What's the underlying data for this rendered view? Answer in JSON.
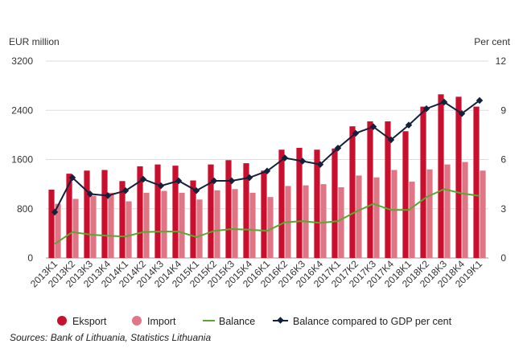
{
  "chart_data": {
    "type": "bar",
    "left_axis_label": "EUR million",
    "right_axis_label": "Per cent",
    "ylim_left": [
      0,
      3200
    ],
    "yticks_left": [
      0,
      800,
      1600,
      2400,
      3200
    ],
    "ylim_right": [
      0,
      12
    ],
    "yticks_right": [
      0,
      3,
      6,
      9,
      12
    ],
    "categories": [
      "2013K1",
      "2013K2",
      "2013K3",
      "2013K4",
      "2014K1",
      "2014K2",
      "2014K3",
      "2014K4",
      "2015K1",
      "2015K2",
      "2015K3",
      "2015K4",
      "2016K1",
      "2016K2",
      "2016K3",
      "2016K4",
      "2017K1",
      "2017K2",
      "2017K3",
      "2017K4",
      "2018K1",
      "2018K2",
      "2018K3",
      "2018K4",
      "2019K1"
    ],
    "series": [
      {
        "name": "Eksport",
        "kind": "bar",
        "axis": "left",
        "color": "#c8102e",
        "values": [
          1110,
          1370,
          1420,
          1430,
          1250,
          1490,
          1520,
          1500,
          1260,
          1520,
          1590,
          1540,
          1420,
          1760,
          1790,
          1760,
          1780,
          2140,
          2220,
          2220,
          2060,
          2460,
          2660,
          2620,
          2460
        ]
      },
      {
        "name": "Import",
        "kind": "bar",
        "axis": "left",
        "color": "#e07585",
        "values": [
          880,
          960,
          1010,
          1060,
          920,
          1060,
          1090,
          1060,
          950,
          1100,
          1120,
          1060,
          990,
          1170,
          1180,
          1200,
          1150,
          1340,
          1310,
          1430,
          1240,
          1440,
          1520,
          1560,
          1420
        ]
      },
      {
        "name": "Balance",
        "kind": "line",
        "axis": "left",
        "color": "#5aa832",
        "values": [
          230,
          420,
          380,
          360,
          350,
          420,
          430,
          430,
          340,
          440,
          470,
          460,
          440,
          580,
          600,
          570,
          600,
          750,
          880,
          780,
          780,
          990,
          1120,
          1050,
          1010
        ]
      },
      {
        "name": "Balance compared to GDP per cent",
        "kind": "line-marker",
        "axis": "right",
        "color": "#14213d",
        "values": [
          2.8,
          4.9,
          3.9,
          3.8,
          4.1,
          4.8,
          4.4,
          4.7,
          4.1,
          4.7,
          4.7,
          4.9,
          5.3,
          6.1,
          5.9,
          5.7,
          6.7,
          7.6,
          8.0,
          7.2,
          8.1,
          9.1,
          9.5,
          8.8,
          9.6
        ]
      }
    ],
    "grid": true,
    "legend_position": "bottom"
  },
  "legend": [
    {
      "label": "Eksport",
      "icon": "red-circle-icon"
    },
    {
      "label": "Import",
      "icon": "pink-circle-icon"
    },
    {
      "label": "Balance",
      "icon": "green-line-icon"
    },
    {
      "label": "Balance compared to GDP per cent",
      "icon": "navy-line-diamond-icon"
    }
  ],
  "source_text": "Sources: Bank of Lithuania, Statistics Lithuania"
}
